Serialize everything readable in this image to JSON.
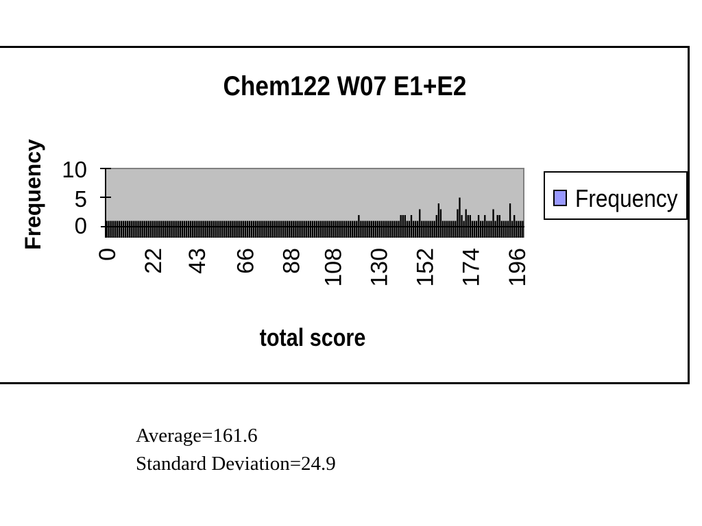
{
  "chart_data": {
    "type": "bar",
    "title": "Chem122 W07 E1+E2",
    "xlabel": "total score",
    "ylabel": "Frequency",
    "ylim": [
      0,
      10
    ],
    "yticks": [
      "10",
      "5",
      "0"
    ],
    "xticks": [
      "0",
      "22",
      "43",
      "66",
      "88",
      "108",
      "130",
      "152",
      "174",
      "196"
    ],
    "series": [
      {
        "name": "Frequency",
        "color": "#9999ff"
      }
    ],
    "x_range": [
      0,
      200
    ],
    "values": [
      1,
      1,
      1,
      1,
      1,
      1,
      1,
      1,
      1,
      1,
      1,
      1,
      1,
      1,
      1,
      1,
      1,
      1,
      1,
      1,
      1,
      1,
      1,
      1,
      1,
      1,
      1,
      1,
      1,
      1,
      1,
      1,
      1,
      1,
      1,
      1,
      1,
      1,
      1,
      1,
      1,
      1,
      1,
      1,
      1,
      1,
      1,
      1,
      1,
      1,
      1,
      1,
      1,
      1,
      1,
      1,
      1,
      1,
      1,
      1,
      1,
      1,
      1,
      1,
      1,
      1,
      1,
      1,
      1,
      1,
      1,
      1,
      1,
      1,
      1,
      1,
      1,
      1,
      1,
      1,
      1,
      1,
      1,
      1,
      1,
      1,
      1,
      1,
      1,
      1,
      1,
      1,
      1,
      1,
      1,
      1,
      1,
      1,
      1,
      1,
      1,
      1,
      1,
      1,
      1,
      1,
      1,
      1,
      1,
      1,
      1,
      1,
      1,
      1,
      1,
      1,
      1,
      1,
      1,
      1,
      2,
      1,
      1,
      1,
      1,
      1,
      1,
      1,
      1,
      1,
      1,
      1,
      1,
      1,
      1,
      1,
      1,
      1,
      1,
      1,
      2,
      2,
      2,
      1,
      1,
      2,
      1,
      1,
      1,
      3,
      1,
      1,
      1,
      1,
      1,
      1,
      1,
      2,
      4,
      3,
      1,
      1,
      1,
      1,
      1,
      1,
      1,
      3,
      5,
      2,
      1,
      3,
      2,
      2,
      1,
      1,
      1,
      2,
      1,
      1,
      2,
      1,
      1,
      1,
      3,
      1,
      2,
      2,
      1,
      1,
      1,
      1,
      4,
      1,
      2,
      1,
      1,
      1,
      1
    ],
    "legend": "right"
  },
  "stats": {
    "average": "Average=161.6",
    "std_dev": "Standard Deviation=24.9"
  }
}
